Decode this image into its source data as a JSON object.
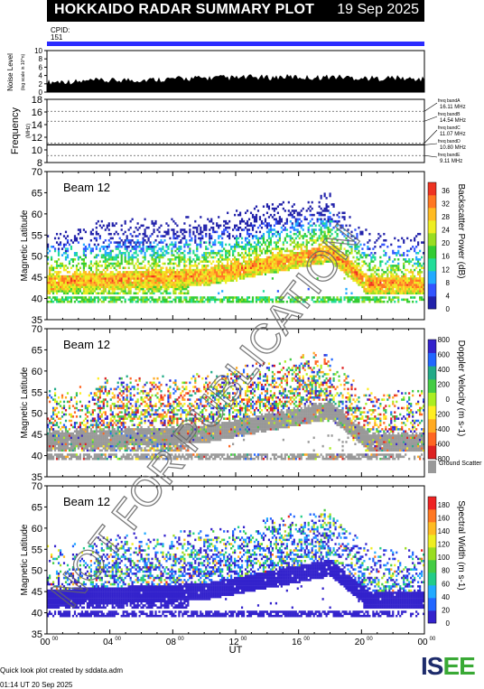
{
  "header": {
    "title": "HOKKAIDO RADAR SUMMARY PLOT",
    "date": "19 Sep 2025"
  },
  "cpid": {
    "label": "CPID:",
    "value": "151"
  },
  "footer": {
    "credit": "Quick look plot created by sddata.adm",
    "timestamp": "01:14 UT 20 Sep 2025"
  },
  "logo": {
    "text_main": "IS",
    "text_accent": "EE"
  },
  "watermark": "NOT FOR PUBLICATION",
  "colors": {
    "cpid_bar": "#2b2bff",
    "ground_scatter": "#999999"
  },
  "chart_data": [
    {
      "type": "area",
      "panel": "noise",
      "ylabel": "Noise Level",
      "ysublabel": "(log scale in 10^n)",
      "ylim": [
        0,
        10
      ],
      "yticks": [
        0,
        2,
        4,
        6,
        8,
        10
      ],
      "series": [
        {
          "values": [
            2.0,
            2.2,
            2.1,
            2.4,
            2.3,
            2.6,
            2.5,
            2.7,
            2.8,
            2.9,
            3.0,
            3.1,
            3.0,
            3.2,
            3.1,
            3.3,
            3.2,
            3.1,
            3.3,
            3.2,
            3.0,
            2.9,
            3.1,
            2.8,
            2.7
          ]
        }
      ]
    },
    {
      "type": "line",
      "panel": "frequency",
      "ylabel": "Frequency",
      "yunit": "(MHz)",
      "ylim": [
        8,
        18
      ],
      "yticks": [
        8,
        10,
        12,
        14,
        16,
        18
      ],
      "freq_bands": [
        {
          "label": "freq bandA",
          "mhz": "16.11 MHz",
          "value": 16.11
        },
        {
          "label": "freq bandB",
          "mhz": "14.54 MHz",
          "value": 14.54
        },
        {
          "label": "freq bandC",
          "mhz": "11.07 MHz",
          "value": 11.07
        },
        {
          "label": "freq bandD",
          "mhz": "10.80 MHz",
          "value": 10.8
        },
        {
          "label": "freq bandE",
          "mhz": "9.11 MHz",
          "value": 9.11
        }
      ],
      "operating_freq": 10.8
    },
    {
      "type": "heatmap",
      "panel": "power",
      "beam_label": "Beam 12",
      "ylabel": "Magnetic Latitude",
      "ylim": [
        35,
        70
      ],
      "yticks": [
        35,
        40,
        45,
        50,
        55,
        60,
        65,
        70
      ],
      "colorbar_label": "Backscatter Power (dB)",
      "colorbar_ticks": [
        "0",
        "4",
        "8",
        "12",
        "16",
        "20",
        "24",
        "28",
        "32",
        "36"
      ],
      "colorscale": [
        "#2222aa",
        "#3355ff",
        "#22aaff",
        "#22dd99",
        "#33cc33",
        "#99dd22",
        "#eeee22",
        "#ffbb22",
        "#ff7722",
        "#ee3322"
      ]
    },
    {
      "type": "heatmap",
      "panel": "velocity",
      "beam_label": "Beam 12",
      "ylabel": "Magnetic Latitude",
      "ylim": [
        35,
        70
      ],
      "yticks": [
        35,
        40,
        45,
        50,
        55,
        60,
        65,
        70
      ],
      "colorbar_label": "Doppler Velocity (m s-1)",
      "colorbar_ticks": [
        "-800",
        "-600",
        "-400",
        "-200",
        "0",
        "200",
        "400",
        "600",
        "800"
      ],
      "colorscale": [
        "#dd2222",
        "#ff6622",
        "#ffaa22",
        "#ffee22",
        "#aaee22",
        "#44cc44",
        "#22aa88",
        "#2266ff",
        "#3322cc"
      ],
      "ground_scatter_label": "Ground Scatter"
    },
    {
      "type": "heatmap",
      "panel": "width",
      "beam_label": "Beam 12",
      "ylabel": "Magnetic Latitude",
      "xlabel": "UT",
      "ylim": [
        35,
        70
      ],
      "yticks": [
        35,
        40,
        45,
        50,
        55,
        60,
        65,
        70
      ],
      "xticks": [
        "00",
        "04",
        "08",
        "12",
        "16",
        "20",
        "00"
      ],
      "xtick_suffix": "00",
      "colorbar_label": "Spectral Width (m s-1)",
      "colorbar_ticks": [
        "0",
        "20",
        "40",
        "60",
        "80",
        "100",
        "120",
        "140",
        "160",
        "180"
      ],
      "colorscale": [
        "#3322cc",
        "#2266ff",
        "#22aaff",
        "#22cc88",
        "#44cc44",
        "#99dd22",
        "#eeee22",
        "#ffbb22",
        "#ff7722",
        "#ee2222"
      ]
    }
  ]
}
